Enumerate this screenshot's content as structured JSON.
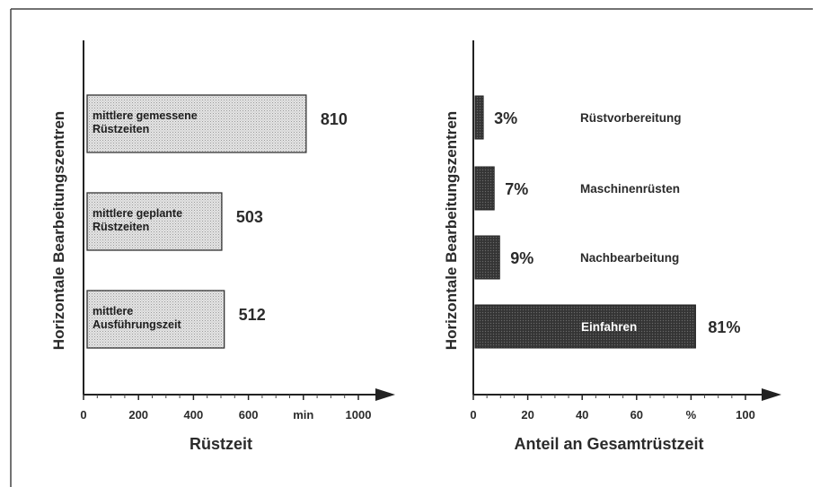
{
  "chart_data": [
    {
      "type": "bar",
      "orientation": "horizontal",
      "ylabel": "Horizontale Bearbeitungszentren",
      "xlabel": "Rüstzeit",
      "xlim": [
        0,
        1000
      ],
      "x_ticks": [
        "0",
        "200",
        "400",
        "600",
        "min",
        "1000"
      ],
      "bars": [
        {
          "label": [
            "mittlere gemessene",
            "Rüstzeiten"
          ],
          "value": 810,
          "value_label": "810"
        },
        {
          "label": [
            "mittlere geplante",
            "Rüstzeiten"
          ],
          "value": 503,
          "value_label": "503"
        },
        {
          "label": [
            "mittlere",
            "Ausführungszeit"
          ],
          "value": 512,
          "value_label": "512"
        }
      ],
      "bar_color": "#d9d9d9"
    },
    {
      "type": "bar",
      "orientation": "horizontal",
      "ylabel": "Horizontale Bearbeitungszentren",
      "xlabel": "Anteil an Gesamtrüstzeit",
      "xlim": [
        0,
        100
      ],
      "x_ticks": [
        "0",
        "20",
        "40",
        "60",
        "%",
        "100"
      ],
      "bars": [
        {
          "category": "Rüstvorbereitung",
          "value": 3,
          "value_label": "3%"
        },
        {
          "category": "Maschinenrüsten",
          "value": 7,
          "value_label": "7%"
        },
        {
          "category": "Nachbearbeitung",
          "value": 9,
          "value_label": "9%"
        },
        {
          "category": "Einfahren",
          "value": 81,
          "value_label": "81%"
        }
      ],
      "bar_color": "#3a3a3a"
    }
  ]
}
